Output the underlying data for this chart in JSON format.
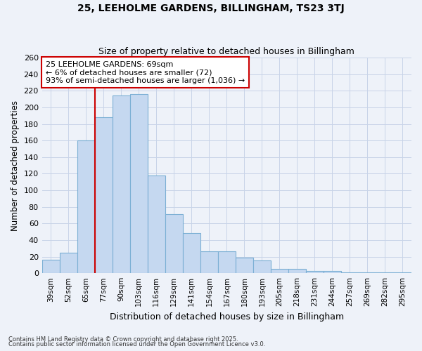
{
  "title1": "25, LEEHOLME GARDENS, BILLINGHAM, TS23 3TJ",
  "title2": "Size of property relative to detached houses in Billingham",
  "xlabel": "Distribution of detached houses by size in Billingham",
  "ylabel": "Number of detached properties",
  "categories": [
    "39sqm",
    "52sqm",
    "65sqm",
    "77sqm",
    "90sqm",
    "103sqm",
    "116sqm",
    "129sqm",
    "141sqm",
    "154sqm",
    "167sqm",
    "180sqm",
    "193sqm",
    "205sqm",
    "218sqm",
    "231sqm",
    "244sqm",
    "257sqm",
    "269sqm",
    "282sqm",
    "295sqm"
  ],
  "values": [
    16,
    25,
    160,
    188,
    214,
    216,
    118,
    71,
    48,
    26,
    26,
    19,
    15,
    5,
    5,
    3,
    3,
    1,
    1,
    1,
    1
  ],
  "bar_color": "#c5d8f0",
  "bar_edge_color": "#7bafd4",
  "grid_color": "#c8d4e8",
  "background_color": "#eef2f9",
  "vline_color": "#cc0000",
  "annotation_line1": "25 LEEHOLME GARDENS: 69sqm",
  "annotation_line2": "← 6% of detached houses are smaller (72)",
  "annotation_line3": "93% of semi-detached houses are larger (1,036) →",
  "annotation_box_color": "#ffffff",
  "annotation_box_edge": "#cc0000",
  "ylim": [
    0,
    260
  ],
  "yticks": [
    0,
    20,
    40,
    60,
    80,
    100,
    120,
    140,
    160,
    180,
    200,
    220,
    240,
    260
  ],
  "footer1": "Contains HM Land Registry data © Crown copyright and database right 2025.",
  "footer2": "Contains public sector information licensed under the Open Government Licence v3.0."
}
